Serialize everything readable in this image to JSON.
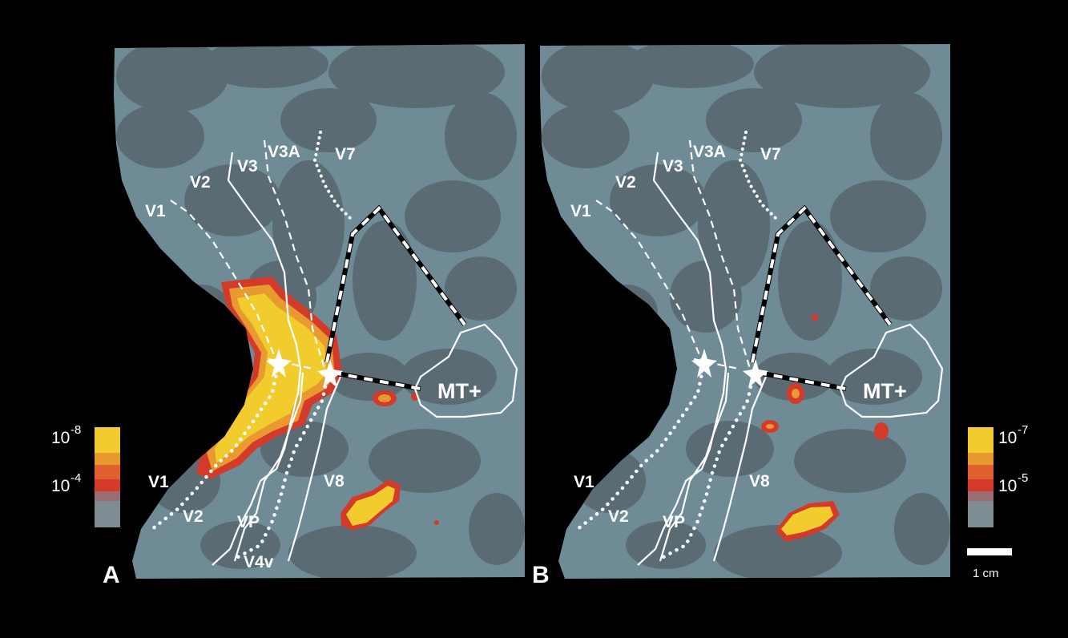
{
  "panels": [
    {
      "letter": "A",
      "areas": {
        "v1_top": "V1",
        "v2_top": "V2",
        "v3": "V3",
        "v3a": "V3A",
        "v7": "V7",
        "v1_bottom": "V1",
        "v2_bottom": "V2",
        "vp": "VP",
        "v4v": "V4v",
        "v8": "V8",
        "mt": "MT+"
      },
      "colorbar": {
        "top_label": "10",
        "top_exp": "-8",
        "mid_label": "10",
        "mid_exp": "-4"
      }
    },
    {
      "letter": "B",
      "areas": {
        "v1_top": "V1",
        "v2_top": "V2",
        "v3": "V3",
        "v3a": "V3A",
        "v7": "V7",
        "v1_bottom": "V1",
        "v2_bottom": "V2",
        "vp": "VP",
        "v8": "V8",
        "mt": "MT+"
      },
      "colorbar": {
        "top_label": "10",
        "top_exp": "-7",
        "mid_label": "10",
        "mid_exp": "-5"
      },
      "scale_bar": "1 cm"
    }
  ],
  "colors": {
    "background": "#000000",
    "gyri": "#6f8b96",
    "sulci": "#5a6b73",
    "activation_high": "#f1cc2c",
    "activation_mid": "#e89a30",
    "activation_low": "#d43a2a",
    "boundary": "#ffffff"
  }
}
